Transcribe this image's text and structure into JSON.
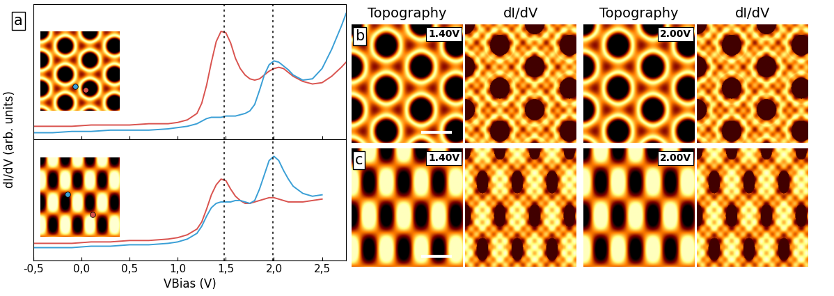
{
  "figure": {
    "panel_labels": [
      "a",
      "b",
      "c"
    ],
    "y_label": "dI/dV (arb. units)",
    "column_titles": [
      "Topography",
      "dI/dV",
      "Topography",
      "dI/dV"
    ],
    "bias_labels": [
      "1.40V",
      "2.00V"
    ]
  },
  "chart_data": [
    {
      "type": "line",
      "x": [
        -0.5,
        -0.3,
        -0.1,
        0.1,
        0.3,
        0.5,
        0.7,
        0.9,
        1.0,
        1.1,
        1.2,
        1.25,
        1.3,
        1.35,
        1.4,
        1.45,
        1.5,
        1.55,
        1.6,
        1.65,
        1.7,
        1.75,
        1.8,
        1.85,
        1.9,
        1.95,
        2.0,
        2.05,
        2.1,
        2.15,
        2.2,
        2.3,
        2.4,
        2.5,
        2.6,
        2.7,
        2.75
      ],
      "series": [
        {
          "color": "#d9534f",
          "values": [
            0.1,
            0.1,
            0.1,
            0.11,
            0.11,
            0.11,
            0.12,
            0.12,
            0.13,
            0.15,
            0.2,
            0.28,
            0.42,
            0.6,
            0.76,
            0.84,
            0.83,
            0.75,
            0.63,
            0.55,
            0.5,
            0.47,
            0.46,
            0.47,
            0.5,
            0.53,
            0.55,
            0.56,
            0.55,
            0.52,
            0.49,
            0.45,
            0.43,
            0.44,
            0.49,
            0.56,
            0.6
          ]
        },
        {
          "color": "#3a9fd6",
          "values": [
            0.05,
            0.05,
            0.06,
            0.06,
            0.07,
            0.07,
            0.07,
            0.08,
            0.09,
            0.1,
            0.12,
            0.14,
            0.16,
            0.17,
            0.17,
            0.17,
            0.18,
            0.18,
            0.18,
            0.19,
            0.2,
            0.22,
            0.27,
            0.38,
            0.5,
            0.58,
            0.61,
            0.6,
            0.57,
            0.54,
            0.5,
            0.46,
            0.47,
            0.55,
            0.7,
            0.88,
            0.98
          ]
        }
      ],
      "xlim": [
        -0.5,
        2.75
      ],
      "ylim": [
        0,
        1.05
      ],
      "xticks": [
        -0.5,
        0,
        0.5,
        1,
        1.5,
        2,
        2.5
      ],
      "yticks": [],
      "tick_labels": false,
      "reference_lines": [
        1.48,
        1.99
      ]
    },
    {
      "type": "line",
      "x_label": "VBias (V)",
      "x": [
        -0.5,
        -0.3,
        -0.1,
        0.1,
        0.3,
        0.5,
        0.7,
        0.9,
        1.0,
        1.1,
        1.2,
        1.25,
        1.3,
        1.35,
        1.4,
        1.45,
        1.5,
        1.55,
        1.6,
        1.65,
        1.7,
        1.75,
        1.8,
        1.85,
        1.9,
        1.95,
        2.0,
        2.05,
        2.1,
        2.15,
        2.2,
        2.3,
        2.4,
        2.5,
        2.6,
        2.7,
        2.75
      ],
      "series": [
        {
          "color": "#d9534f",
          "values": [
            0.12,
            0.12,
            0.12,
            0.13,
            0.13,
            0.14,
            0.14,
            0.15,
            0.16,
            0.18,
            0.22,
            0.27,
            0.36,
            0.46,
            0.53,
            0.57,
            0.56,
            0.5,
            0.45,
            0.42,
            0.4,
            0.4,
            0.41,
            0.42,
            0.43,
            0.44,
            0.44,
            0.43,
            0.42,
            0.41,
            0.41,
            0.41,
            0.42,
            0.43,
            null,
            null,
            null
          ]
        },
        {
          "color": "#3a9fd6",
          "values": [
            0.09,
            0.09,
            0.09,
            0.1,
            0.1,
            0.11,
            0.11,
            0.12,
            0.13,
            0.15,
            0.19,
            0.24,
            0.31,
            0.37,
            0.4,
            0.41,
            0.41,
            0.41,
            0.42,
            0.42,
            0.41,
            0.4,
            0.42,
            0.5,
            0.6,
            0.7,
            0.73,
            0.7,
            0.63,
            0.57,
            0.52,
            0.47,
            0.45,
            0.46,
            null,
            null,
            null
          ]
        }
      ],
      "xlim": [
        -0.5,
        2.75
      ],
      "ylim": [
        0,
        0.85
      ],
      "xticks": [
        {
          "value": -0.5,
          "label": "-0,5"
        },
        {
          "value": 0,
          "label": "0,0"
        },
        {
          "value": 0.5,
          "label": "0,5"
        },
        {
          "value": 1,
          "label": "1,0"
        },
        {
          "value": 1.5,
          "label": "1,5"
        },
        {
          "value": 2,
          "label": "2,0"
        },
        {
          "value": 2.5,
          "label": "2,5"
        }
      ],
      "yticks": [],
      "tick_labels": "x",
      "reference_lines": [
        1.48,
        1.99
      ]
    }
  ]
}
